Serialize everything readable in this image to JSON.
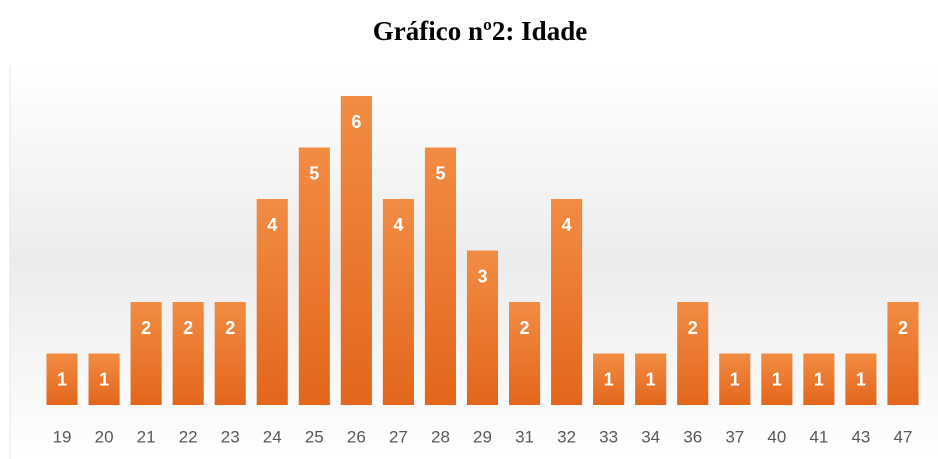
{
  "chart_data": {
    "type": "bar",
    "title": "Gráfico nº2: Idade",
    "categories": [
      "19",
      "20",
      "21",
      "22",
      "23",
      "24",
      "25",
      "26",
      "27",
      "28",
      "29",
      "31",
      "32",
      "33",
      "34",
      "36",
      "37",
      "40",
      "41",
      "43",
      "47"
    ],
    "values": [
      1,
      1,
      2,
      2,
      2,
      4,
      5,
      6,
      4,
      5,
      3,
      2,
      4,
      1,
      1,
      2,
      1,
      1,
      1,
      1,
      2
    ],
    "color": "#ed7d31"
  }
}
